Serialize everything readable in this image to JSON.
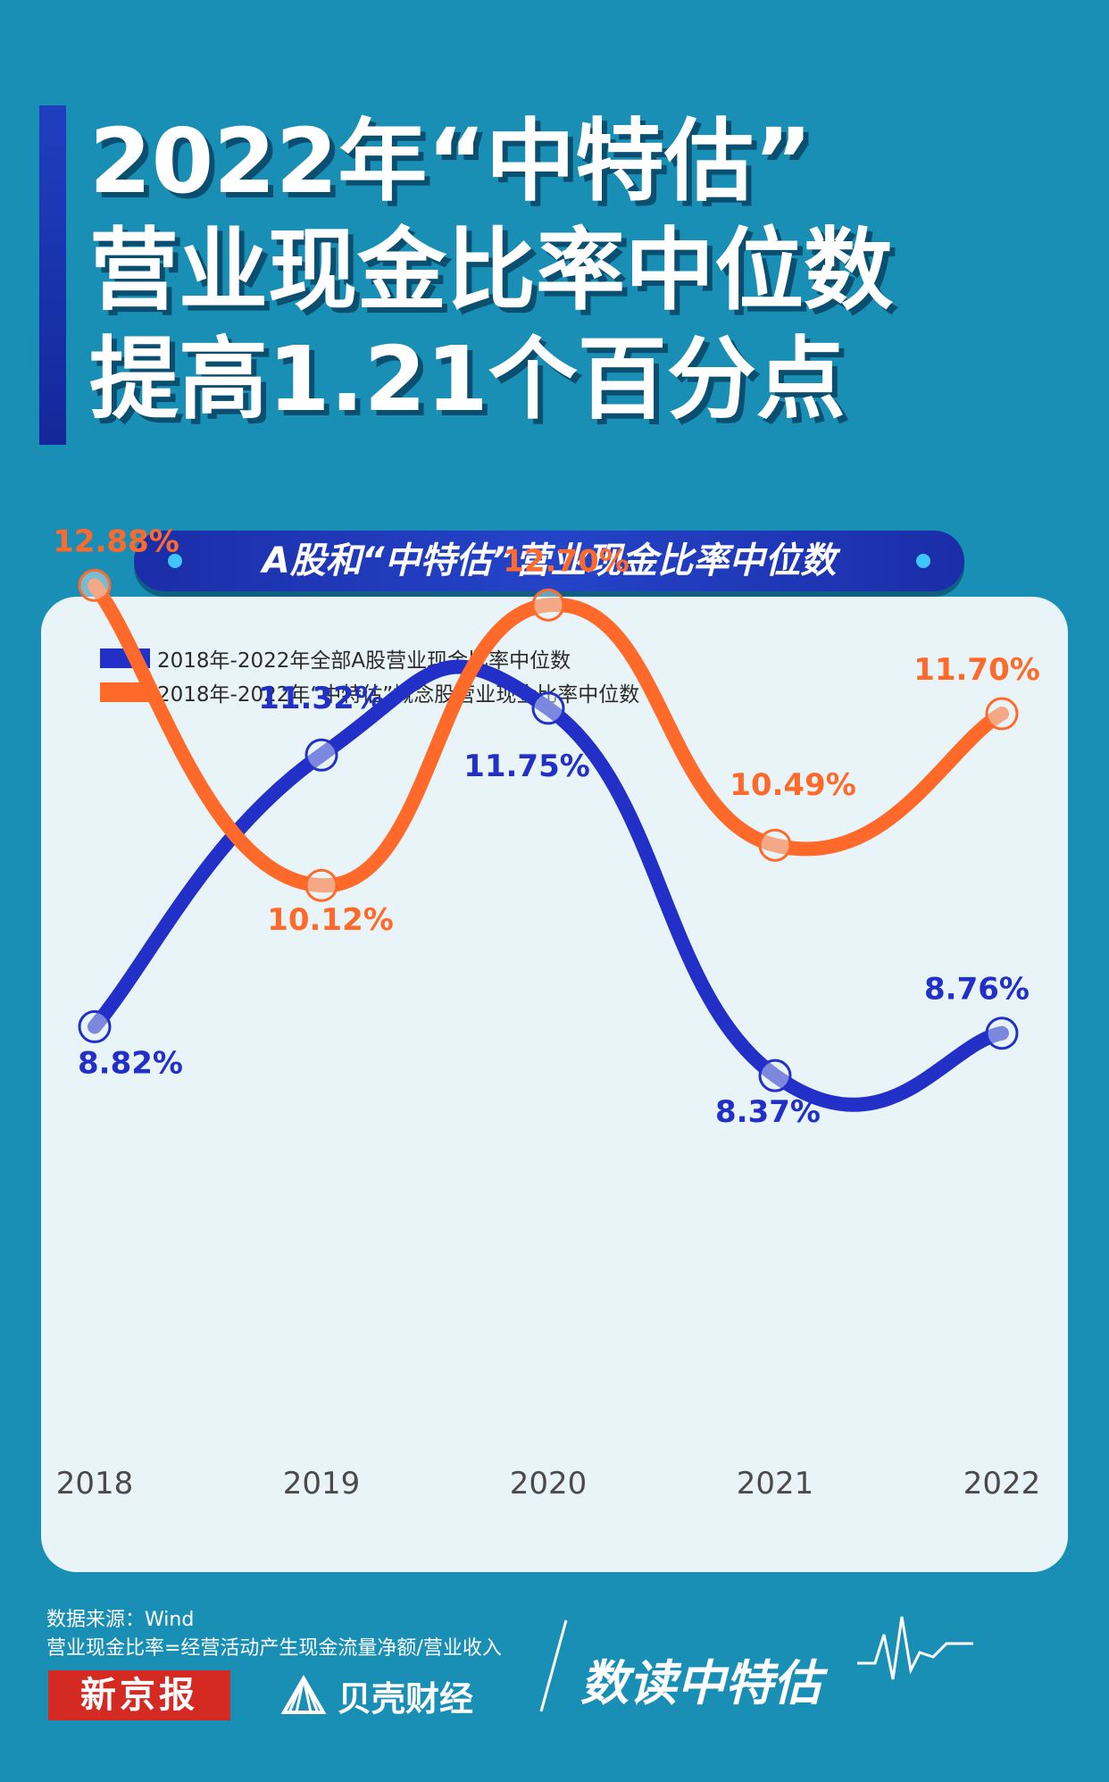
{
  "title": {
    "line1": "2022年“中特估”",
    "line2": "营业现金比率中位数",
    "line3": "提高1.21个百分点"
  },
  "subtitle": "A股和“中特估”营业现金比率中位数",
  "chart_data": {
    "type": "line",
    "categories": [
      "2018",
      "2019",
      "2020",
      "2021",
      "2022"
    ],
    "series": [
      {
        "name": "2018年-2022年全部A股营业现金比率中位数",
        "values": [
          8.82,
          11.32,
          11.75,
          8.37,
          8.76
        ],
        "labels": [
          "8.82%",
          "11.32%",
          "11.75%",
          "8.37%",
          "8.76%"
        ],
        "color": "#2230c8"
      },
      {
        "name": "2018年-2022年“中特估”概念股营业现金比率中位数",
        "values": [
          12.88,
          10.12,
          12.7,
          10.49,
          11.7
        ],
        "labels": [
          "12.88%",
          "10.12%",
          "12.70%",
          "10.49%",
          "11.70%"
        ],
        "color": "#ff6a2a"
      }
    ],
    "ylim": [
      7.5,
      13.5
    ],
    "grid": false,
    "legend_position": "top-left"
  },
  "footer": {
    "source": "数据来源：Wind",
    "formula": "营业现金比率=经营活动产生现金流量净额/营业收入",
    "logo_xjb": "新京报",
    "logo_bk": "贝壳财经",
    "brand": "数读中特估"
  },
  "colors": {
    "background": "#1a8fb5",
    "card": "#e8f4f7",
    "blue": "#2230c8",
    "orange": "#ff6a2a"
  }
}
